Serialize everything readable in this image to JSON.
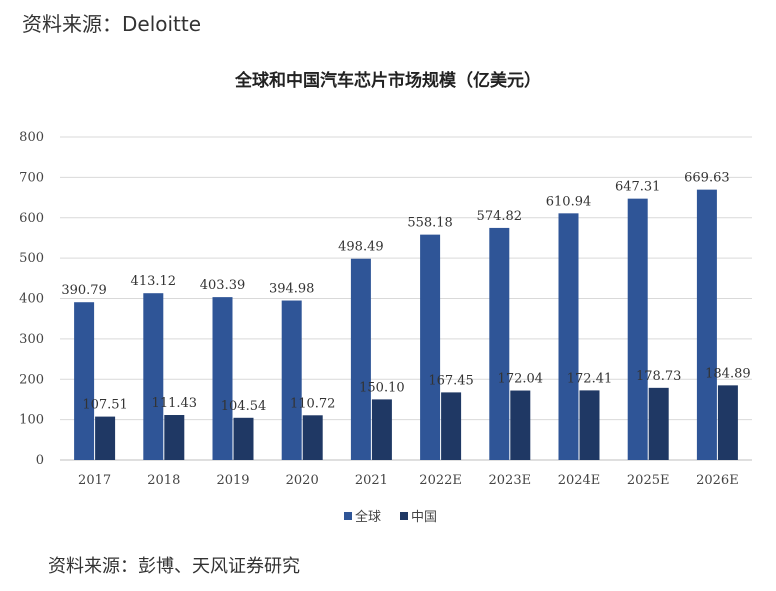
{
  "header": {
    "source_top": "资料来源：Deloitte"
  },
  "footer": {
    "source_bottom": "资料来源：彭博、天风证券研究"
  },
  "chart_data": {
    "type": "bar",
    "title": "全球和中国汽车芯片市场规模（亿美元）",
    "xlabel": "",
    "ylabel": "",
    "ylim": [
      0,
      800
    ],
    "yticks": [
      0,
      100,
      200,
      300,
      400,
      500,
      600,
      700,
      800
    ],
    "grid": true,
    "legend_position": "bottom",
    "categories": [
      "2017",
      "2018",
      "2019",
      "2020",
      "2021",
      "2022E",
      "2023E",
      "2024E",
      "2025E",
      "2026E"
    ],
    "series": [
      {
        "name": "全球",
        "color": "#2f5597",
        "values": [
          390.79,
          413.12,
          403.39,
          394.98,
          498.49,
          558.18,
          574.82,
          610.94,
          647.31,
          669.63
        ],
        "labels": [
          "390.79",
          "413.12",
          "403.39",
          "394.98",
          "498.49",
          "558.18",
          "574.82",
          "610.94",
          "647.31",
          "669.63"
        ]
      },
      {
        "name": "中国",
        "color": "#1f3864",
        "values": [
          107.51,
          111.43,
          104.54,
          110.72,
          150.1,
          167.45,
          172.04,
          172.41,
          178.73,
          184.89
        ],
        "labels": [
          "107.51",
          "111.43",
          "104.54",
          "110.72",
          "150.10",
          "167.45",
          "172.04",
          "172.41",
          "178.73",
          "184.89"
        ]
      }
    ]
  }
}
